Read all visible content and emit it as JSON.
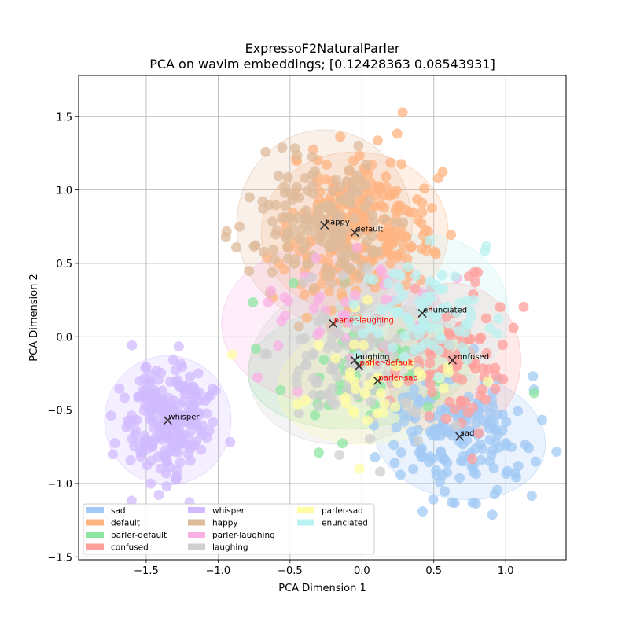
{
  "chart_data": {
    "type": "scatter",
    "title": "ExpressoF2NaturalParler",
    "subtitle": "PCA on wavlm embeddings; [0.12428363 0.08543931]",
    "xlabel": "PCA Dimension 1",
    "ylabel": "PCA Dimension 2",
    "xlim": [
      -1.97,
      1.42
    ],
    "ylim": [
      -1.52,
      1.78
    ],
    "xticks": [
      -1.5,
      -1.0,
      -0.5,
      0.0,
      0.5,
      1.0
    ],
    "xtick_labels": [
      "−1.5",
      "−1.0",
      "−0.5",
      "0.0",
      "0.5",
      "1.0"
    ],
    "yticks": [
      -1.5,
      -1.0,
      -0.5,
      0.0,
      0.5,
      1.0,
      1.5
    ],
    "ytick_labels": [
      "−1.5",
      "−1.0",
      "−0.5",
      "0.0",
      "0.5",
      "1.0",
      "1.5"
    ],
    "grid": true,
    "legend_position": "lower-left",
    "legend_columns": 3,
    "series": [
      {
        "name": "sad",
        "color": "#a1c9f4",
        "centroid": [
          0.68,
          -0.68
        ],
        "spread": [
          0.23,
          0.2
        ],
        "ellipse": {
          "width": 1.2,
          "height": 0.85,
          "angle": -10
        },
        "n": 170,
        "label_color": "#000000"
      },
      {
        "name": "default",
        "color": "#ffb482",
        "centroid": [
          -0.05,
          0.71
        ],
        "spread": [
          0.26,
          0.27
        ],
        "ellipse": {
          "width": 1.3,
          "height": 1.1,
          "angle": 0
        },
        "n": 260,
        "label_color": "#000000"
      },
      {
        "name": "parler-default",
        "color": "#8de5a1",
        "centroid": [
          -0.02,
          -0.2
        ],
        "spread": [
          0.3,
          0.22
        ],
        "ellipse": {
          "width": 1.55,
          "height": 0.85,
          "angle": 5
        },
        "n": 50,
        "label_color": "#ff0000"
      },
      {
        "name": "confused",
        "color": "#ff9f9b",
        "centroid": [
          0.63,
          -0.16
        ],
        "spread": [
          0.2,
          0.25
        ],
        "ellipse": {
          "width": 0.95,
          "height": 1.05,
          "angle": 0
        },
        "n": 90,
        "label_color": "#000000"
      },
      {
        "name": "whisper",
        "color": "#d0bbff",
        "centroid": [
          -1.35,
          -0.57
        ],
        "spread": [
          0.15,
          0.18
        ],
        "ellipse": {
          "width": 0.88,
          "height": 0.88,
          "angle": 0
        },
        "n": 230,
        "label_color": "#000000"
      },
      {
        "name": "happy",
        "color": "#debb9b",
        "centroid": [
          -0.26,
          0.76
        ],
        "spread": [
          0.22,
          0.22
        ],
        "ellipse": {
          "width": 1.22,
          "height": 1.3,
          "angle": 0
        },
        "n": 170,
        "label_color": "#000000"
      },
      {
        "name": "parler-laughing",
        "color": "#fab0e4",
        "centroid": [
          -0.2,
          0.09
        ],
        "spread": [
          0.3,
          0.2
        ],
        "ellipse": {
          "width": 1.55,
          "height": 1.1,
          "angle": 0
        },
        "n": 40,
        "label_color": "#ff0000"
      },
      {
        "name": "laughing",
        "color": "#cfcfcf",
        "centroid": [
          -0.05,
          -0.16
        ],
        "spread": [
          0.3,
          0.25
        ],
        "ellipse": {
          "width": 1.5,
          "height": 1.12,
          "angle": 15
        },
        "n": 110,
        "label_color": "#000000"
      },
      {
        "name": "parler-sad",
        "color": "#fffea3",
        "centroid": [
          0.11,
          -0.3
        ],
        "spread": [
          0.28,
          0.18
        ],
        "ellipse": {
          "width": 1.4,
          "height": 0.85,
          "angle": 8
        },
        "n": 40,
        "label_color": "#ff0000"
      },
      {
        "name": "enunciated",
        "color": "#b9f2f0",
        "centroid": [
          0.42,
          0.16
        ],
        "spread": [
          0.22,
          0.2
        ],
        "ellipse": {
          "width": 1.2,
          "height": 1.08,
          "angle": 0
        },
        "n": 80,
        "label_color": "#000000"
      }
    ]
  }
}
